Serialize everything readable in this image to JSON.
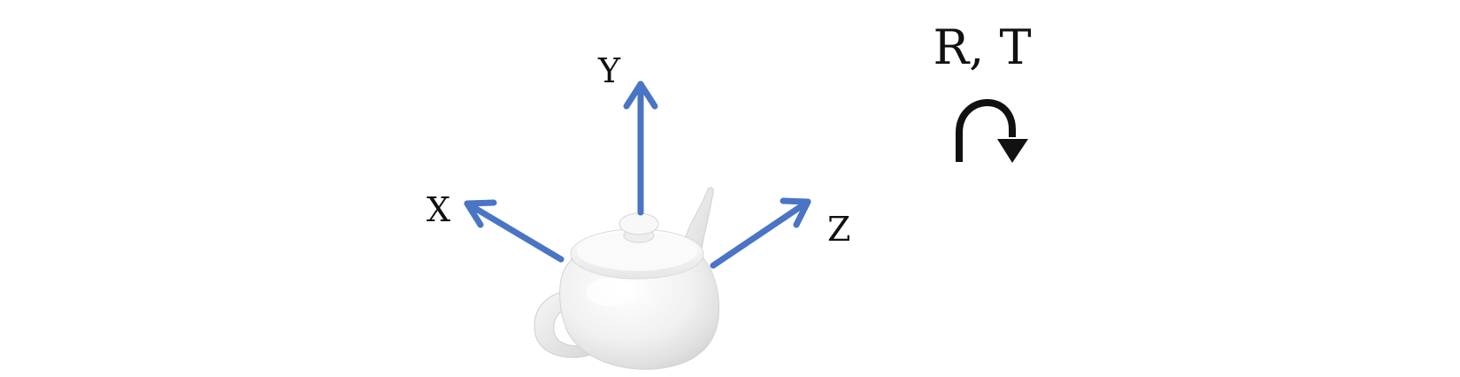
{
  "figure": {
    "axes": {
      "x_label": "X",
      "y_label": "Y",
      "z_label": "Z",
      "arrow_color": "#4A74C6"
    },
    "object": {
      "icon": "teapot-icon",
      "color": "#F2F2F2"
    },
    "transform": {
      "label": "R, T",
      "icon": "rotate-arrow-icon",
      "color": "#111111"
    }
  }
}
